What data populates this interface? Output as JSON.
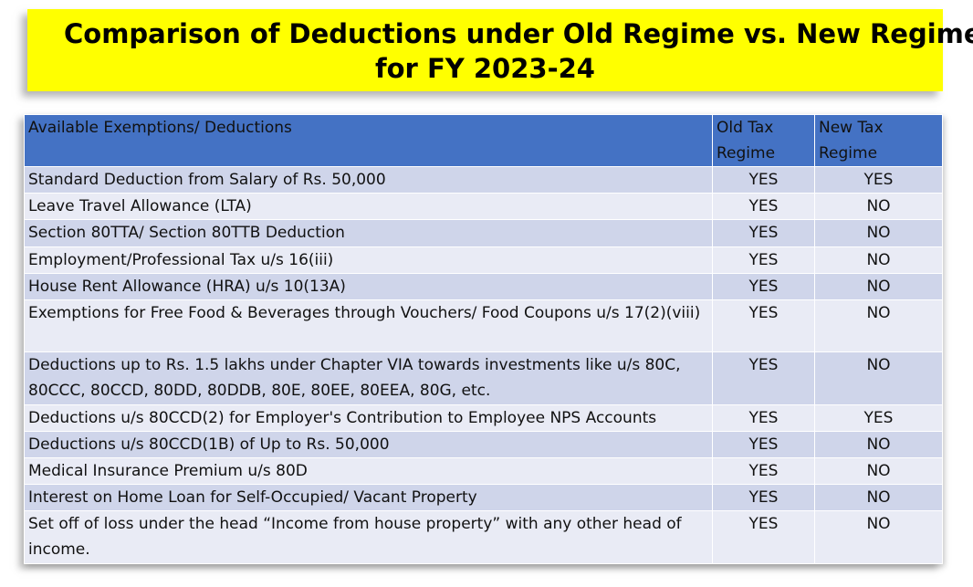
{
  "title": {
    "line1": "Comparison of Deductions under Old Regime vs. New Regime",
    "line2": "for FY 2023-24"
  },
  "table": {
    "headers": [
      "Available Exemptions/ Deductions",
      "Old Tax Regime",
      "New Tax Regime"
    ],
    "rows": [
      {
        "item": "Standard Deduction from Salary of Rs. 50,000",
        "old": "YES",
        "new": "YES"
      },
      {
        "item": "Leave Travel Allowance (LTA)",
        "old": "YES",
        "new": "NO"
      },
      {
        "item": "Section 80TTA/ Section 80TTB Deduction",
        "old": "YES",
        "new": "NO"
      },
      {
        "item": "Employment/Professional Tax u/s 16(iii)",
        "old": "YES",
        "new": "NO"
      },
      {
        "item": "House Rent Allowance (HRA) u/s 10(13A)",
        "old": "YES",
        "new": "NO"
      },
      {
        "item": "Exemptions for Free Food & Beverages through Vouchers/ Food Coupons u/s 17(2)(viii)",
        "old": "YES",
        "new": "NO"
      },
      {
        "item": "Deductions up to Rs. 1.5 lakhs under Chapter VIA towards investments like u/s 80C, 80CCC, 80CCD, 80DD, 80DDB, 80E, 80EE, 80EEA, 80G, etc.",
        "old": "YES",
        "new": "NO"
      },
      {
        "item": "Deductions u/s 80CCD(2) for Employer's Contribution to Employee NPS Accounts",
        "old": "YES",
        "new": "YES"
      },
      {
        "item": "Deductions u/s 80CCD(1B) of Up to Rs. 50,000",
        "old": "YES",
        "new": "NO"
      },
      {
        "item": "Medical Insurance Premium u/s 80D",
        "old": "YES",
        "new": "NO"
      },
      {
        "item": "Interest on Home Loan for Self-Occupied/ Vacant Property",
        "old": "YES",
        "new": "NO"
      },
      {
        "item": "Set off of loss under the head “Income from house property” with any other head of income.",
        "old": "YES",
        "new": "NO"
      }
    ]
  },
  "colors": {
    "banner": "#ffff00",
    "header": "#4472c4",
    "row_dark": "#cfd5ea",
    "row_light": "#e9ebf5"
  }
}
